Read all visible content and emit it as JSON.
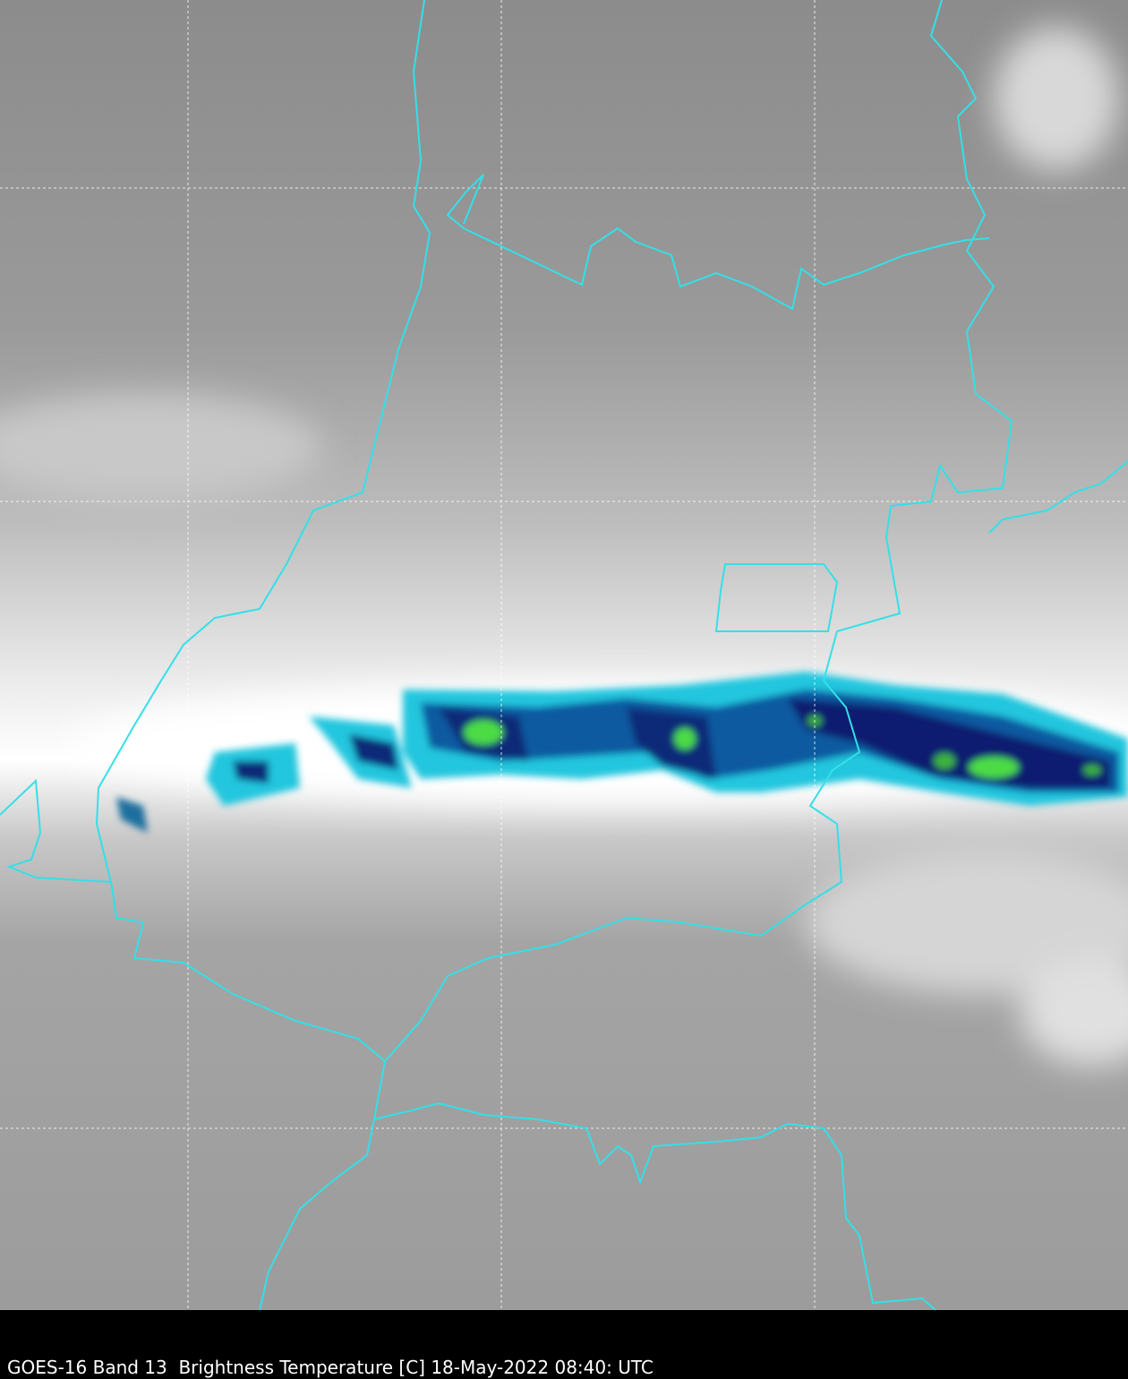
{
  "caption": "GOES-16 Band 13  Brightness Temperature [C] 18-May-2022 08:40: UTC"
}
